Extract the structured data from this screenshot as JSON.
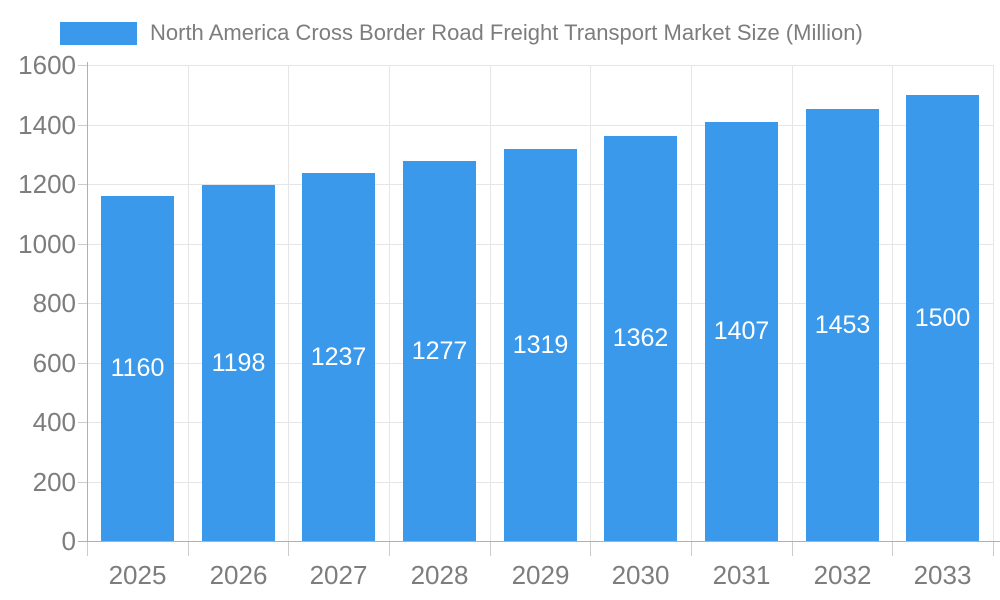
{
  "legend": {
    "label": "North America Cross Border Road Freight Transport Market Size (Million)"
  },
  "colors": {
    "bar": "#3b99ec",
    "bar_label": "#ffffff",
    "grid": "#e6e6e6",
    "axis": "#b0b0b0",
    "tick": "#cccccc",
    "text": "#7d7d7d",
    "background": "#ffffff"
  },
  "chart_data": {
    "type": "bar",
    "title": "North America Cross Border Road Freight Transport Market Size (Million)",
    "categories": [
      "2025",
      "2026",
      "2027",
      "2028",
      "2029",
      "2030",
      "2031",
      "2032",
      "2033"
    ],
    "values": [
      1160,
      1198,
      1237,
      1277,
      1319,
      1362,
      1407,
      1453,
      1500
    ],
    "xlabel": "",
    "ylabel": "",
    "ylim": [
      0,
      1600
    ],
    "ytick_step": 200,
    "yticks": [
      0,
      200,
      400,
      600,
      800,
      1000,
      1200,
      1400,
      1600
    ],
    "grid": true,
    "legend_position": "top-left",
    "value_labels": "inside-middle"
  }
}
